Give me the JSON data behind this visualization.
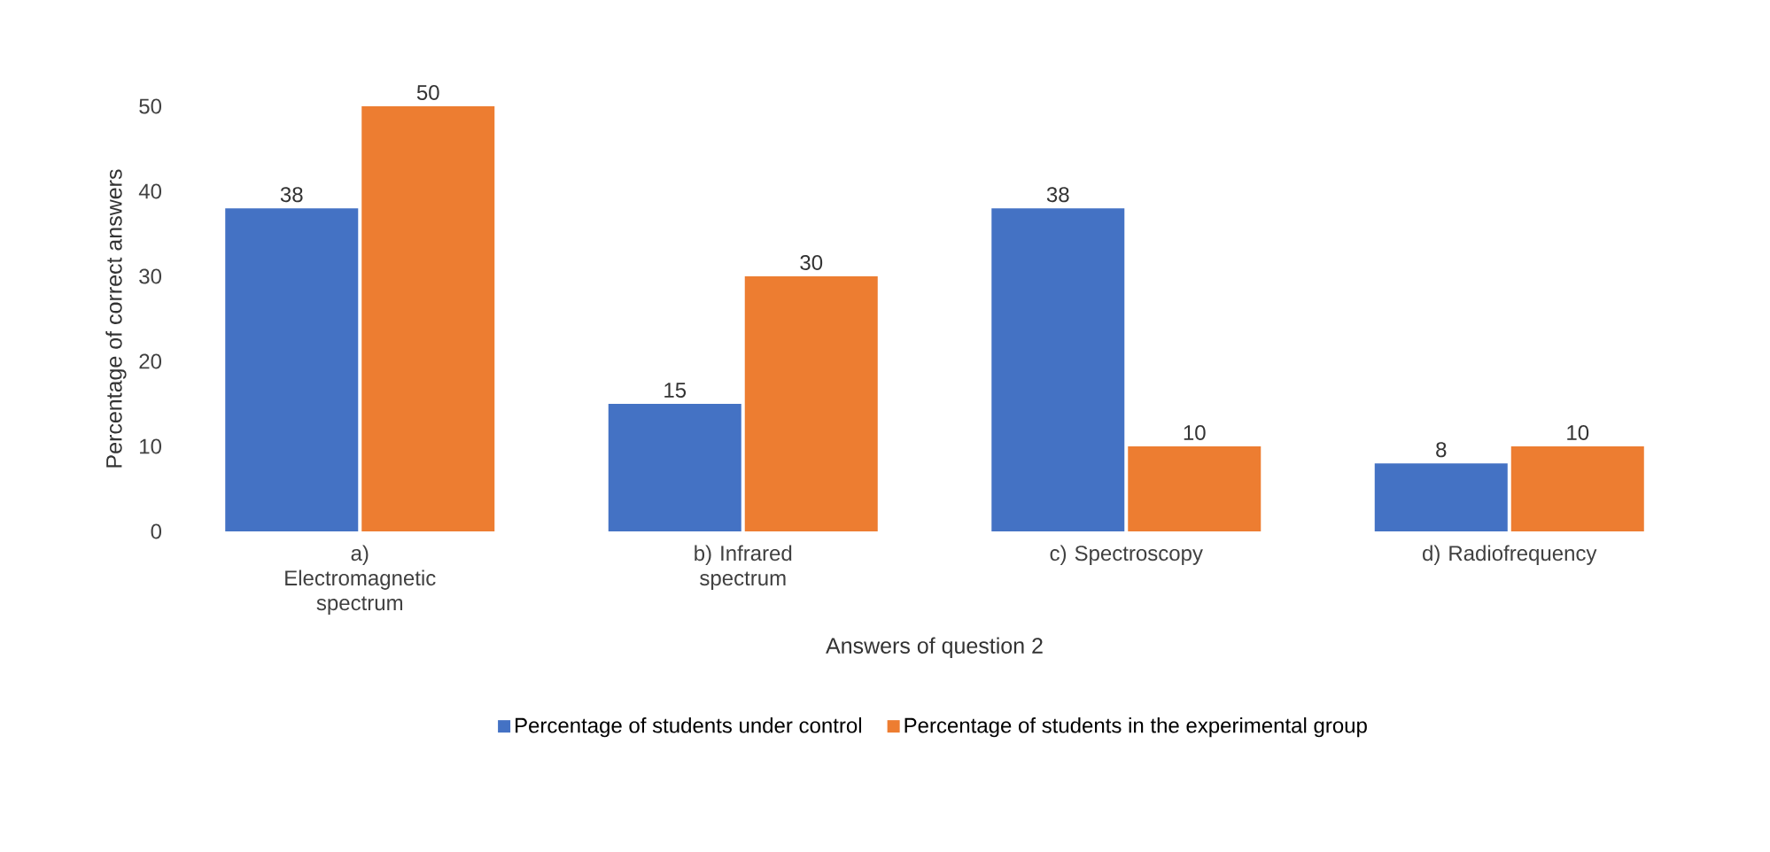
{
  "chart_data": {
    "type": "bar",
    "xlabel": "Answers of question 2",
    "ylabel": "Percentage of correct answers",
    "categories": [
      "a) Electromagnetic spectrum",
      "b) Infrared spectrum",
      "c) Spectroscopy",
      "d) Radiofrequency"
    ],
    "series": [
      {
        "name": "Percentage of students under control",
        "color": "#4472c4",
        "values": [
          38,
          15,
          38,
          8
        ]
      },
      {
        "name": "Percentage of students in the experimental group",
        "color": "#ed7d31",
        "values": [
          50,
          30,
          10,
          10
        ]
      }
    ],
    "ylim": [
      0,
      50
    ],
    "yticks": [
      0,
      10,
      20,
      30,
      40,
      50
    ],
    "data_labels": true,
    "legend": "bottom",
    "grid": false
  }
}
